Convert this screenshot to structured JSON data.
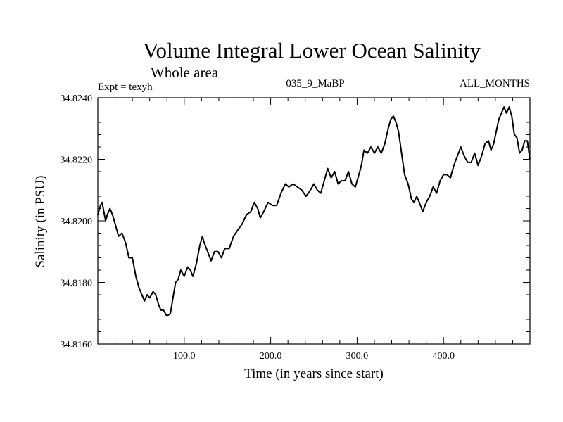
{
  "chart_data": {
    "type": "line",
    "title": "Volume Integral Lower Ocean Salinity",
    "subtitle": "Whole area",
    "info_left": "Expt = texyh",
    "info_center": "035_9_MaBP",
    "info_right": "ALL_MONTHS",
    "xlabel": "Time (in years since start)",
    "ylabel": "Salinity (in PSU)",
    "xlim": [
      0,
      500
    ],
    "ylim": [
      34.816,
      34.824
    ],
    "x_ticks": [
      100,
      200,
      300,
      400
    ],
    "x_tick_labels": [
      "100.0",
      "200.0",
      "300.0",
      "400.0"
    ],
    "y_ticks": [
      34.816,
      34.818,
      34.82,
      34.822,
      34.824
    ],
    "y_tick_labels": [
      "34.8160",
      "34.8180",
      "34.8200",
      "34.8220",
      "34.8240"
    ],
    "grid": false,
    "series": [
      {
        "x": [
          0,
          3,
          5,
          7,
          9,
          11,
          14,
          17,
          20,
          24,
          28,
          32,
          36,
          40,
          44,
          48,
          51,
          54,
          57,
          60,
          64,
          67,
          70,
          73,
          76,
          80,
          84,
          87,
          90,
          93,
          96,
          100,
          104,
          107,
          110,
          114,
          118,
          121,
          123,
          127,
          131,
          135,
          139,
          143,
          147,
          152,
          157,
          162,
          167,
          172,
          177,
          181,
          185,
          188,
          192,
          197,
          202,
          207,
          212,
          217,
          221,
          226,
          231,
          236,
          241,
          246,
          250,
          254,
          258,
          262,
          266,
          270,
          274,
          278,
          282,
          286,
          290,
          294,
          298,
          302,
          305,
          308,
          312,
          316,
          320,
          324,
          328,
          332,
          336,
          339,
          342,
          345,
          348,
          351,
          355,
          359,
          363,
          366,
          369,
          372,
          376,
          380,
          384,
          388,
          392,
          396,
          400,
          404,
          408,
          412,
          416,
          420,
          424,
          428,
          432,
          436,
          440,
          444,
          448,
          452,
          455,
          458,
          461,
          464,
          467,
          470,
          473,
          476,
          479,
          482,
          485,
          488,
          491,
          494,
          497,
          500
        ],
        "y": [
          34.8202,
          34.8205,
          34.8206,
          34.8203,
          34.82,
          34.8202,
          34.8204,
          34.8202,
          34.8199,
          34.8195,
          34.8196,
          34.8193,
          34.8188,
          34.8188,
          34.8182,
          34.8178,
          34.8176,
          34.8174,
          34.8176,
          34.8175,
          34.8177,
          34.8176,
          34.8173,
          34.8171,
          34.8171,
          34.8169,
          34.817,
          34.8175,
          34.818,
          34.8181,
          34.8184,
          34.8182,
          34.8185,
          34.8184,
          34.8182,
          34.8186,
          34.8192,
          34.8195,
          34.8193,
          34.819,
          34.8187,
          34.819,
          34.819,
          34.8188,
          34.8191,
          34.8191,
          34.8195,
          34.8197,
          34.8199,
          34.8202,
          34.8203,
          34.8206,
          34.8204,
          34.8201,
          34.8203,
          34.8206,
          34.8205,
          34.8205,
          34.8209,
          34.8212,
          34.8211,
          34.8212,
          34.8211,
          34.821,
          34.8208,
          34.821,
          34.8212,
          34.821,
          34.8209,
          34.8213,
          34.8217,
          34.8214,
          34.8216,
          34.8212,
          34.8213,
          34.8213,
          34.8216,
          34.8212,
          34.8211,
          34.8215,
          34.8218,
          34.8223,
          34.8222,
          34.8224,
          34.8222,
          34.8224,
          34.8222,
          34.8225,
          34.823,
          34.8233,
          34.8234,
          34.8232,
          34.8229,
          34.8223,
          34.8215,
          34.8212,
          34.8207,
          34.8206,
          34.8208,
          34.8206,
          34.8203,
          34.8206,
          34.8208,
          34.8211,
          34.8209,
          34.8213,
          34.8215,
          34.8215,
          34.8214,
          34.8218,
          34.8221,
          34.8224,
          34.8221,
          34.8219,
          34.8219,
          34.8222,
          34.8218,
          34.8221,
          34.8225,
          34.8226,
          34.8223,
          34.8225,
          34.8229,
          34.8233,
          34.8235,
          34.8237,
          34.8235,
          34.8237,
          34.8234,
          34.8228,
          34.8227,
          34.8222,
          34.8223,
          34.8226,
          34.8226,
          34.822
        ]
      }
    ]
  }
}
